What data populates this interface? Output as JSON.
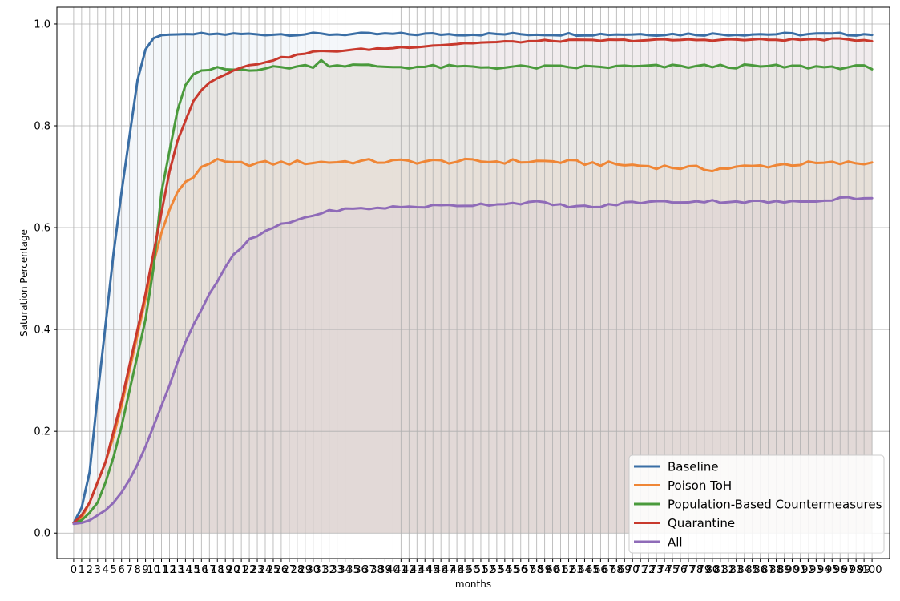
{
  "chart_data": {
    "type": "line",
    "xlabel": "months",
    "ylabel": "Saturation Percentage",
    "xlim": [
      -2.1,
      102.2
    ],
    "ylim": [
      -0.05,
      1.033
    ],
    "yticks": [
      0.0,
      0.2,
      0.4,
      0.6,
      0.8,
      1.0
    ],
    "ytick_labels": [
      "0.0",
      "0.2",
      "0.4",
      "0.6",
      "0.8",
      "1.0"
    ],
    "xticks_every": 1,
    "x_range": [
      0,
      100
    ],
    "grid": true,
    "filled_under_lines": true,
    "legend_position": "lower-right",
    "series": [
      {
        "name": "Baseline",
        "color": "#3a6ea5",
        "keyframes": [
          [
            0,
            0.02
          ],
          [
            1,
            0.05
          ],
          [
            2,
            0.12
          ],
          [
            3,
            0.27
          ],
          [
            4,
            0.41
          ],
          [
            5,
            0.55
          ],
          [
            6,
            0.67
          ],
          [
            7,
            0.78
          ],
          [
            8,
            0.89
          ],
          [
            9,
            0.95
          ],
          [
            10,
            0.972
          ],
          [
            11,
            0.978
          ],
          [
            12,
            0.979
          ],
          [
            14,
            0.98
          ],
          [
            100,
            0.98
          ]
        ],
        "noise": 0.003
      },
      {
        "name": "Poison ToH",
        "color": "#ef8636",
        "keyframes": [
          [
            0,
            0.02
          ],
          [
            1,
            0.03
          ],
          [
            2,
            0.06
          ],
          [
            3,
            0.1
          ],
          [
            4,
            0.14
          ],
          [
            5,
            0.19
          ],
          [
            6,
            0.25
          ],
          [
            7,
            0.32
          ],
          [
            8,
            0.39
          ],
          [
            9,
            0.46
          ],
          [
            10,
            0.53
          ],
          [
            11,
            0.59
          ],
          [
            12,
            0.635
          ],
          [
            13,
            0.67
          ],
          [
            14,
            0.69
          ],
          [
            15,
            0.7
          ],
          [
            16,
            0.72
          ],
          [
            17,
            0.728
          ],
          [
            18,
            0.73
          ],
          [
            20,
            0.725
          ],
          [
            35,
            0.73
          ],
          [
            60,
            0.73
          ],
          [
            80,
            0.715
          ],
          [
            90,
            0.725
          ],
          [
            100,
            0.727
          ]
        ],
        "noise": 0.005
      },
      {
        "name": "Population-Based Countermeasures",
        "color": "#4a9a3c",
        "keyframes": [
          [
            0,
            0.02
          ],
          [
            1,
            0.025
          ],
          [
            2,
            0.04
          ],
          [
            3,
            0.06
          ],
          [
            4,
            0.1
          ],
          [
            5,
            0.15
          ],
          [
            6,
            0.21
          ],
          [
            7,
            0.28
          ],
          [
            8,
            0.35
          ],
          [
            9,
            0.42
          ],
          [
            10,
            0.52
          ],
          [
            11,
            0.67
          ],
          [
            12,
            0.75
          ],
          [
            13,
            0.83
          ],
          [
            14,
            0.88
          ],
          [
            15,
            0.9
          ],
          [
            16,
            0.905
          ],
          [
            17,
            0.91
          ],
          [
            18,
            0.912
          ],
          [
            20,
            0.91
          ],
          [
            30,
            0.918
          ],
          [
            31,
            0.928
          ],
          [
            32,
            0.92
          ],
          [
            40,
            0.916
          ],
          [
            60,
            0.915
          ],
          [
            80,
            0.917
          ],
          [
            100,
            0.915
          ]
        ],
        "noise": 0.004
      },
      {
        "name": "Quarantine",
        "color": "#c8392d",
        "keyframes": [
          [
            0,
            0.02
          ],
          [
            1,
            0.035
          ],
          [
            2,
            0.06
          ],
          [
            3,
            0.1
          ],
          [
            4,
            0.14
          ],
          [
            5,
            0.2
          ],
          [
            6,
            0.26
          ],
          [
            7,
            0.33
          ],
          [
            8,
            0.4
          ],
          [
            9,
            0.47
          ],
          [
            10,
            0.55
          ],
          [
            11,
            0.63
          ],
          [
            12,
            0.71
          ],
          [
            13,
            0.77
          ],
          [
            14,
            0.81
          ],
          [
            15,
            0.85
          ],
          [
            16,
            0.87
          ],
          [
            17,
            0.885
          ],
          [
            18,
            0.895
          ],
          [
            20,
            0.91
          ],
          [
            25,
            0.93
          ],
          [
            30,
            0.945
          ],
          [
            40,
            0.953
          ],
          [
            50,
            0.963
          ],
          [
            60,
            0.967
          ],
          [
            70,
            0.968
          ],
          [
            80,
            0.969
          ],
          [
            90,
            0.969
          ],
          [
            95,
            0.97
          ],
          [
            100,
            0.968
          ]
        ],
        "noise": 0.002
      },
      {
        "name": "All",
        "color": "#8f6bb8",
        "keyframes": [
          [
            0,
            0.018
          ],
          [
            1,
            0.02
          ],
          [
            2,
            0.025
          ],
          [
            3,
            0.035
          ],
          [
            4,
            0.045
          ],
          [
            5,
            0.06
          ],
          [
            6,
            0.08
          ],
          [
            7,
            0.105
          ],
          [
            8,
            0.135
          ],
          [
            9,
            0.17
          ],
          [
            10,
            0.21
          ],
          [
            11,
            0.25
          ],
          [
            12,
            0.29
          ],
          [
            13,
            0.335
          ],
          [
            14,
            0.375
          ],
          [
            15,
            0.41
          ],
          [
            16,
            0.44
          ],
          [
            17,
            0.47
          ],
          [
            18,
            0.495
          ],
          [
            19,
            0.52
          ],
          [
            20,
            0.545
          ],
          [
            22,
            0.575
          ],
          [
            25,
            0.6
          ],
          [
            30,
            0.625
          ],
          [
            33,
            0.635
          ],
          [
            40,
            0.64
          ],
          [
            50,
            0.645
          ],
          [
            58,
            0.65
          ],
          [
            60,
            0.645
          ],
          [
            65,
            0.64
          ],
          [
            70,
            0.65
          ],
          [
            80,
            0.652
          ],
          [
            90,
            0.65
          ],
          [
            95,
            0.656
          ],
          [
            97,
            0.66
          ],
          [
            100,
            0.656
          ]
        ],
        "noise": 0.003
      }
    ]
  }
}
